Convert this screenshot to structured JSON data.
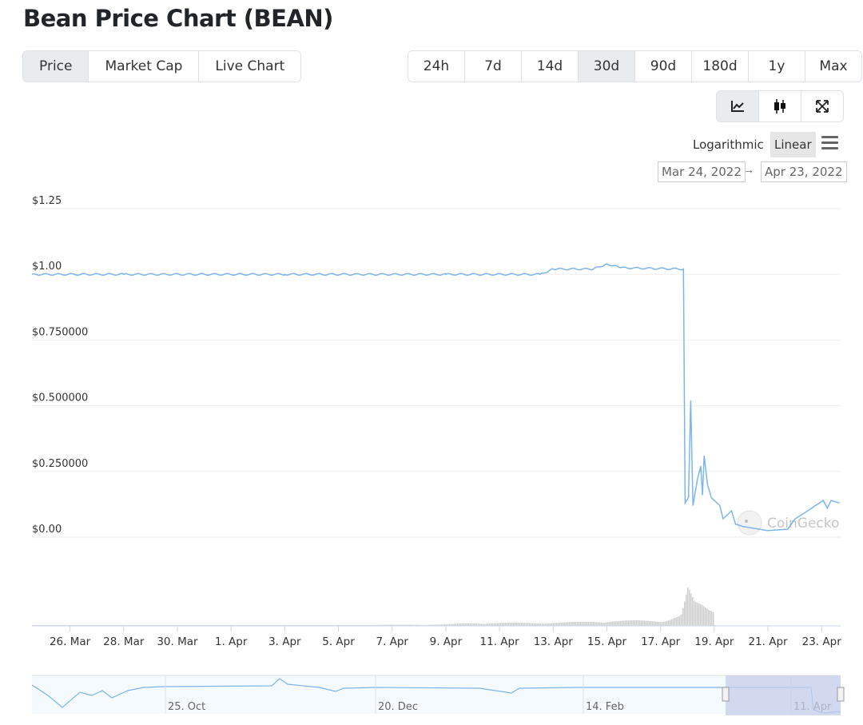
{
  "title": "Bean Price Chart (BEAN)",
  "tabs": [
    {
      "label": "Price",
      "active": true
    },
    {
      "label": "Market Cap"
    },
    {
      "label": "Live Chart"
    }
  ],
  "ranges": [
    {
      "label": "24h"
    },
    {
      "label": "7d"
    },
    {
      "label": "14d"
    },
    {
      "label": "30d",
      "active": true
    },
    {
      "label": "90d"
    },
    {
      "label": "180d"
    },
    {
      "label": "1y"
    },
    {
      "label": "Max"
    }
  ],
  "chart_types": [
    {
      "icon": "line-chart-icon",
      "active": true
    },
    {
      "icon": "candlestick-icon"
    },
    {
      "icon": "expand-icon"
    }
  ],
  "scale": {
    "log": "Logarithmic",
    "linear": "Linear",
    "selected": "Linear"
  },
  "date_range": {
    "from": "Mar 24, 2022",
    "arrow": "→",
    "to": "Apr 23, 2022"
  },
  "watermark": "CoinGecko",
  "colors": {
    "line": "#7cb5ec",
    "grid": "#e6e6e6",
    "volume": "#cccccc",
    "navigator_mask": "#c5cde8"
  },
  "chart_data": {
    "type": "line",
    "title": "",
    "ylim": [
      0,
      1.25
    ],
    "xlim": [
      "2022-03-24T14:00",
      "2022-04-23T17:00"
    ],
    "grid": true,
    "y_ticks": [
      {
        "v": 1.25,
        "label": "$1.25"
      },
      {
        "v": 1.0,
        "label": "$1.00"
      },
      {
        "v": 0.75,
        "label": "$0.750000"
      },
      {
        "v": 0.5,
        "label": "$0.500000"
      },
      {
        "v": 0.25,
        "label": "$0.250000"
      },
      {
        "v": 0,
        "label": "$0.00"
      }
    ],
    "x_ticks": [
      {
        "d": "2022-03-26",
        "label": "26. Mar"
      },
      {
        "d": "2022-03-28",
        "label": "28. Mar"
      },
      {
        "d": "2022-03-30",
        "label": "30. Mar"
      },
      {
        "d": "2022-04-01",
        "label": "1. Apr"
      },
      {
        "d": "2022-04-03",
        "label": "3. Apr"
      },
      {
        "d": "2022-04-05",
        "label": "5. Apr"
      },
      {
        "d": "2022-04-07",
        "label": "7. Apr"
      },
      {
        "d": "2022-04-09",
        "label": "9. Apr"
      },
      {
        "d": "2022-04-11",
        "label": "11. Apr"
      },
      {
        "d": "2022-04-13",
        "label": "13. Apr"
      },
      {
        "d": "2022-04-15",
        "label": "15. Apr"
      },
      {
        "d": "2022-04-17",
        "label": "17. Apr"
      },
      {
        "d": "2022-04-19",
        "label": "19. Apr"
      },
      {
        "d": "2022-04-21",
        "label": "21. Apr"
      },
      {
        "d": "2022-04-23",
        "label": "23. Apr"
      }
    ],
    "price": [
      [
        "2022-03-24T14:00",
        1.0
      ],
      [
        "2022-03-28T00:00",
        1.0
      ],
      [
        "2022-04-03T00:00",
        1.0
      ],
      [
        "2022-04-09T00:00",
        1.0
      ],
      [
        "2022-04-12T12:00",
        1.0
      ],
      [
        "2022-04-13T00:00",
        1.02
      ],
      [
        "2022-04-14T12:00",
        1.02
      ],
      [
        "2022-04-15T00:00",
        1.04
      ],
      [
        "2022-04-15T12:00",
        1.025
      ],
      [
        "2022-04-17T20:30",
        1.02
      ],
      [
        "2022-04-17T22:00",
        0.13
      ],
      [
        "2022-04-18T01:00",
        0.15
      ],
      [
        "2022-04-18T03:00",
        0.52
      ],
      [
        "2022-04-18T05:00",
        0.12
      ],
      [
        "2022-04-18T09:00",
        0.22
      ],
      [
        "2022-04-18T12:00",
        0.27
      ],
      [
        "2022-04-18T13:30",
        0.16
      ],
      [
        "2022-04-18T15:00",
        0.31
      ],
      [
        "2022-04-18T18:00",
        0.2
      ],
      [
        "2022-04-18T21:30",
        0.15
      ],
      [
        "2022-04-19T05:00",
        0.12
      ],
      [
        "2022-04-19T08:00",
        0.07
      ],
      [
        "2022-04-19T15:30",
        0.1
      ],
      [
        "2022-04-19T19:00",
        0.05
      ],
      [
        "2022-04-20T02:00",
        0.04
      ],
      [
        "2022-04-20T23:30",
        0.025
      ],
      [
        "2022-04-21T17:30",
        0.03
      ],
      [
        "2022-04-22T00:30",
        0.07
      ],
      [
        "2022-04-22T11:30",
        0.1
      ],
      [
        "2022-04-23T01:30",
        0.14
      ],
      [
        "2022-04-23T05:00",
        0.11
      ],
      [
        "2022-04-23T08:30",
        0.14
      ],
      [
        "2022-04-23T16:00",
        0.13
      ]
    ],
    "volume_relative": [
      [
        "2022-03-25",
        0.01
      ],
      [
        "2022-03-28",
        0.01
      ],
      [
        "2022-04-01",
        0.02
      ],
      [
        "2022-04-05",
        0.02
      ],
      [
        "2022-04-09",
        0.04
      ],
      [
        "2022-04-10",
        0.08
      ],
      [
        "2022-04-12",
        0.08
      ],
      [
        "2022-04-14",
        0.1
      ],
      [
        "2022-04-15",
        0.14
      ],
      [
        "2022-04-16",
        0.14
      ],
      [
        "2022-04-17",
        0.14
      ],
      [
        "2022-04-17T18:00",
        0.3
      ],
      [
        "2022-04-18",
        1.0
      ],
      [
        "2022-04-18T06:00",
        0.6
      ],
      [
        "2022-04-18T12:00",
        0.55
      ],
      [
        "2022-04-18T18:00",
        0.45
      ],
      [
        "2022-04-19",
        0.4
      ]
    ],
    "navigator": {
      "x_ticks": [
        {
          "label": "25. Oct"
        },
        {
          "label": "20. Dec"
        },
        {
          "label": "14. Feb"
        },
        {
          "label": "11. Apr"
        }
      ]
    }
  }
}
